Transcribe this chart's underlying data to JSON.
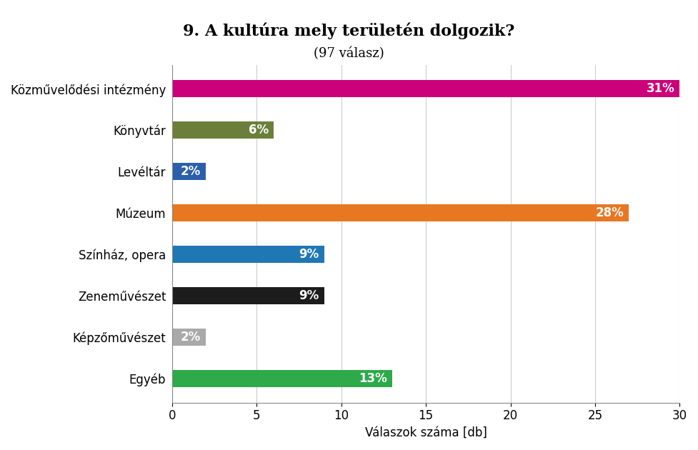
{
  "title_line1": "9. A kultúra mely területén dolgozik?",
  "title_line2": "(97 válasz)",
  "categories": [
    "Egyéb",
    "Képzőművészet",
    "Zeneművészet",
    "Színház, opera",
    "Múzeum",
    "Levéltár",
    "Könyvtár",
    "Közművelődési intézmény"
  ],
  "values": [
    13,
    2,
    9,
    9,
    27,
    2,
    6,
    30
  ],
  "percentages": [
    "13%",
    "2%",
    "9%",
    "9%",
    "28%",
    "2%",
    "6%",
    "31%"
  ],
  "colors": [
    "#2EAA4A",
    "#A9A9A9",
    "#1C1C1C",
    "#1F77B4",
    "#E87722",
    "#2B5FAC",
    "#6B7F3A",
    "#CC007A"
  ],
  "xlabel": "Válaszok száma [db]",
  "xlim": [
    0,
    30
  ],
  "xticks": [
    0,
    5,
    10,
    15,
    20,
    25,
    30
  ],
  "background_color": "#FFFFFF",
  "grid_color": "#CCCCCC",
  "title_fontsize": 16,
  "subtitle_fontsize": 13,
  "label_fontsize": 12,
  "bar_label_fontsize": 12,
  "xlabel_fontsize": 12,
  "bar_height": 0.42
}
